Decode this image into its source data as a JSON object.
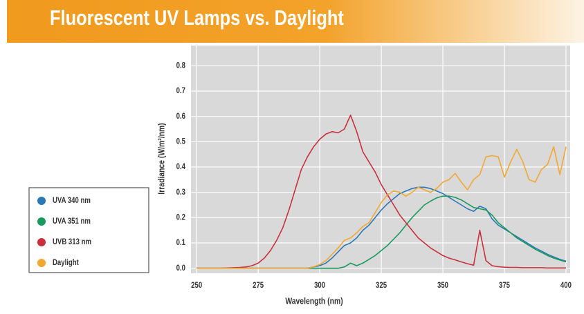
{
  "chart_data": {
    "type": "line",
    "title": "Fluorescent UV Lamps vs. Daylight",
    "xlabel": "Wavelength (nm)",
    "ylabel": "Irradiance (W/m²/nm)",
    "x": [
      250,
      252.5,
      255,
      257.5,
      260,
      262.5,
      265,
      267.5,
      270,
      272.5,
      275,
      277.5,
      280,
      282.5,
      285,
      287.5,
      290,
      292.5,
      295,
      297.5,
      300,
      302.5,
      305,
      307.5,
      310,
      312.5,
      315,
      317.5,
      320,
      322.5,
      325,
      327.5,
      330,
      332.5,
      335,
      337.5,
      340,
      342.5,
      345,
      347.5,
      350,
      352.5,
      355,
      357.5,
      360,
      362.5,
      365,
      367.5,
      370,
      372.5,
      375,
      377.5,
      380,
      382.5,
      385,
      387.5,
      390,
      392.5,
      395,
      397.5,
      400
    ],
    "series": [
      {
        "name": "UVA 340 nm",
        "color": "#2a78b8",
        "values": [
          0,
          0,
          0,
          0,
          0,
          0,
          0,
          0,
          0,
          0,
          0,
          0,
          0,
          0,
          0,
          0,
          0,
          0,
          0,
          0.005,
          0.01,
          0.02,
          0.04,
          0.065,
          0.09,
          0.1,
          0.12,
          0.15,
          0.17,
          0.2,
          0.23,
          0.255,
          0.275,
          0.295,
          0.305,
          0.315,
          0.32,
          0.32,
          0.315,
          0.305,
          0.295,
          0.28,
          0.265,
          0.25,
          0.235,
          0.225,
          0.245,
          0.235,
          0.195,
          0.17,
          0.155,
          0.14,
          0.125,
          0.11,
          0.095,
          0.08,
          0.068,
          0.055,
          0.045,
          0.035,
          0.028
        ]
      },
      {
        "name": "UVA 351 nm",
        "color": "#1a9a5a",
        "values": [
          0,
          0,
          0,
          0,
          0,
          0,
          0,
          0,
          0,
          0,
          0,
          0,
          0,
          0,
          0,
          0,
          0,
          0,
          0,
          0,
          0,
          0,
          0,
          0,
          0.005,
          0.02,
          0.01,
          0.02,
          0.035,
          0.05,
          0.07,
          0.09,
          0.115,
          0.14,
          0.17,
          0.2,
          0.225,
          0.25,
          0.265,
          0.278,
          0.285,
          0.285,
          0.28,
          0.27,
          0.255,
          0.24,
          0.235,
          0.23,
          0.21,
          0.18,
          0.16,
          0.14,
          0.12,
          0.105,
          0.09,
          0.075,
          0.063,
          0.05,
          0.04,
          0.032,
          0.025
        ]
      },
      {
        "name": "UVB 313 nm",
        "color": "#c8303c",
        "values": [
          0,
          0,
          0,
          0,
          0,
          0.001,
          0.002,
          0.003,
          0.005,
          0.01,
          0.02,
          0.04,
          0.07,
          0.11,
          0.16,
          0.23,
          0.31,
          0.39,
          0.44,
          0.48,
          0.51,
          0.53,
          0.54,
          0.535,
          0.55,
          0.605,
          0.54,
          0.46,
          0.42,
          0.38,
          0.33,
          0.29,
          0.25,
          0.21,
          0.18,
          0.15,
          0.12,
          0.1,
          0.08,
          0.065,
          0.05,
          0.04,
          0.033,
          0.025,
          0.018,
          0.012,
          0.15,
          0.03,
          0.01,
          0.006,
          0.004,
          0.003,
          0.003,
          0.002,
          0.002,
          0.002,
          0.002,
          0.001,
          0.001,
          0.001,
          0.001
        ]
      },
      {
        "name": "Daylight",
        "color": "#f2a830",
        "values": [
          0,
          0,
          0,
          0,
          0,
          0,
          0,
          0,
          0,
          0,
          0,
          0,
          0,
          0,
          0,
          0,
          0,
          0,
          0,
          0.005,
          0.015,
          0.03,
          0.055,
          0.08,
          0.11,
          0.12,
          0.14,
          0.165,
          0.18,
          0.22,
          0.26,
          0.29,
          0.305,
          0.3,
          0.285,
          0.3,
          0.32,
          0.31,
          0.3,
          0.315,
          0.34,
          0.35,
          0.375,
          0.34,
          0.31,
          0.35,
          0.37,
          0.44,
          0.445,
          0.44,
          0.36,
          0.42,
          0.47,
          0.42,
          0.35,
          0.34,
          0.39,
          0.41,
          0.48,
          0.37,
          0.48
        ]
      }
    ],
    "xlim": [
      247.7,
      401.7
    ],
    "xticks": [
      250,
      275,
      300,
      325,
      350,
      375,
      400
    ],
    "ylim": [
      -0.02,
      0.88
    ],
    "yticks": [
      {
        "value": 0,
        "label": "0.0"
      },
      0.1,
      0.2,
      0.3,
      0.4,
      0.5,
      0.6,
      0.7,
      0.8
    ],
    "grid": true,
    "legend": "left"
  }
}
